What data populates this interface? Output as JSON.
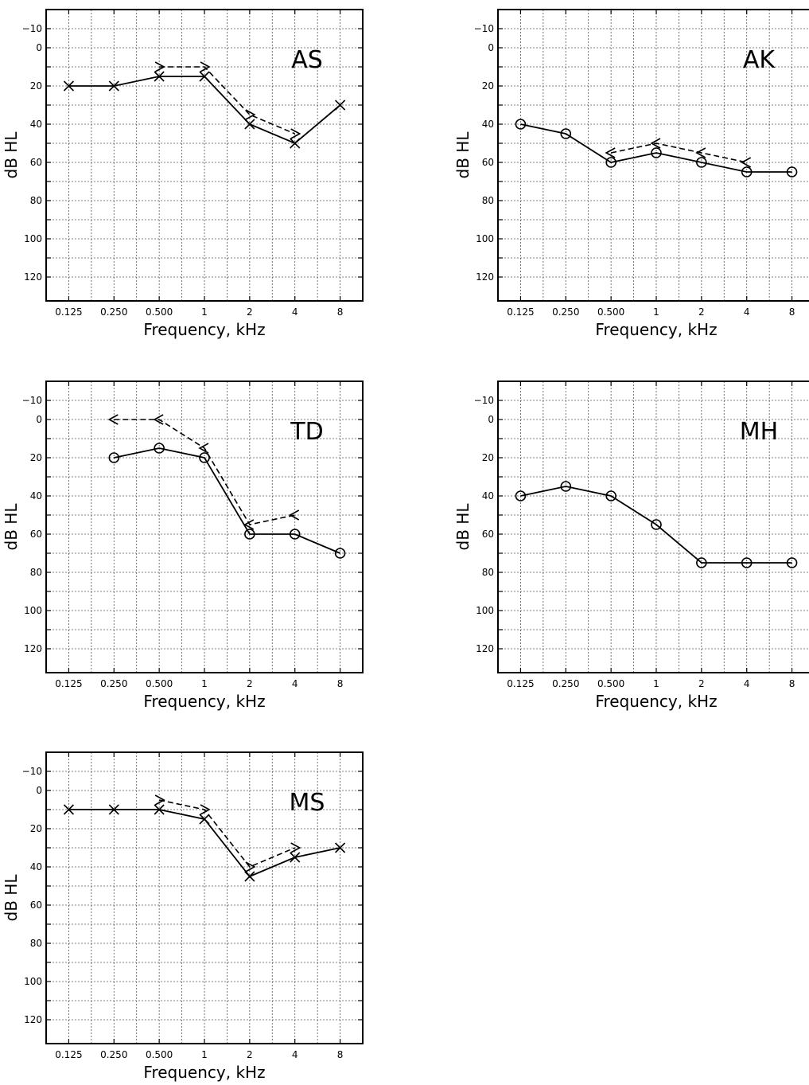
{
  "chart_data": [
    {
      "type": "line",
      "title": "AS",
      "xlabel": "Frequency, kHz",
      "ylabel": "dB HL",
      "x": [
        "0.125",
        "0.250",
        "0.500",
        "1",
        "2",
        "4",
        "8"
      ],
      "yticks": [
        "-10",
        "0",
        "20",
        "40",
        "60",
        "80",
        "100",
        "120"
      ],
      "ylim": [
        -20,
        130
      ],
      "y_inverted": true,
      "grid": true,
      "series": [
        {
          "marker": "x",
          "style": "solid",
          "x": [
            "0.125",
            "0.250",
            "0.500",
            "1",
            "2",
            "4",
            "8"
          ],
          "values": [
            20,
            20,
            15,
            15,
            40,
            50,
            30
          ]
        },
        {
          "marker": ">",
          "style": "dashed",
          "x": [
            "0.500",
            "1",
            "2",
            "4"
          ],
          "values": [
            10,
            10,
            35,
            45
          ]
        }
      ]
    },
    {
      "type": "line",
      "title": "AK",
      "xlabel": "Frequency, kHz",
      "ylabel": "dB HL",
      "x": [
        "0.125",
        "0.250",
        "0.500",
        "1",
        "2",
        "4",
        "8"
      ],
      "yticks": [
        "-10",
        "0",
        "20",
        "40",
        "60",
        "80",
        "100",
        "120"
      ],
      "ylim": [
        -20,
        130
      ],
      "y_inverted": true,
      "grid": true,
      "series": [
        {
          "marker": "o",
          "style": "solid",
          "x": [
            "0.125",
            "0.250",
            "0.500",
            "1",
            "2",
            "4",
            "8"
          ],
          "values": [
            40,
            45,
            60,
            55,
            60,
            65,
            65
          ]
        },
        {
          "marker": "<",
          "style": "dashed",
          "x": [
            "0.500",
            "1",
            "2",
            "4"
          ],
          "values": [
            55,
            50,
            55,
            60
          ]
        }
      ]
    },
    {
      "type": "line",
      "title": "TD",
      "xlabel": "Frequency, kHz",
      "ylabel": "dB HL",
      "x": [
        "0.125",
        "0.250",
        "0.500",
        "1",
        "2",
        "4",
        "8"
      ],
      "yticks": [
        "-10",
        "0",
        "20",
        "40",
        "60",
        "80",
        "100",
        "120"
      ],
      "ylim": [
        -20,
        130
      ],
      "y_inverted": true,
      "grid": true,
      "series": [
        {
          "marker": "o",
          "style": "solid",
          "x": [
            "0.250",
            "0.500",
            "1",
            "2",
            "4",
            "8"
          ],
          "values": [
            20,
            15,
            20,
            60,
            60,
            70
          ]
        },
        {
          "marker": "<",
          "style": "dashed",
          "x": [
            "0.250",
            "0.500",
            "1",
            "2",
            "4"
          ],
          "values": [
            0,
            0,
            15,
            55,
            50
          ]
        }
      ]
    },
    {
      "type": "line",
      "title": "MH",
      "xlabel": "Frequency, kHz",
      "ylabel": "dB HL",
      "x": [
        "0.125",
        "0.250",
        "0.500",
        "1",
        "2",
        "4",
        "8"
      ],
      "yticks": [
        "-10",
        "0",
        "20",
        "40",
        "60",
        "80",
        "100",
        "120"
      ],
      "ylim": [
        -20,
        130
      ],
      "y_inverted": true,
      "grid": true,
      "series": [
        {
          "marker": "o",
          "style": "solid",
          "x": [
            "0.125",
            "0.250",
            "0.500",
            "1",
            "2",
            "4",
            "8"
          ],
          "values": [
            40,
            35,
            40,
            55,
            75,
            75,
            75
          ]
        }
      ]
    },
    {
      "type": "line",
      "title": "MS",
      "xlabel": "Frequency, kHz",
      "ylabel": "dB HL",
      "x": [
        "0.125",
        "0.250",
        "0.500",
        "1",
        "2",
        "4",
        "8"
      ],
      "yticks": [
        "-10",
        "0",
        "20",
        "40",
        "60",
        "80",
        "100",
        "120"
      ],
      "ylim": [
        -20,
        130
      ],
      "y_inverted": true,
      "grid": true,
      "series": [
        {
          "marker": "x",
          "style": "solid",
          "x": [
            "0.125",
            "0.250",
            "0.500",
            "1",
            "2",
            "4",
            "8"
          ],
          "values": [
            10,
            10,
            10,
            15,
            45,
            35,
            30
          ]
        },
        {
          "marker": ">",
          "style": "dashed",
          "x": [
            "0.500",
            "1",
            "2",
            "4"
          ],
          "values": [
            5,
            10,
            40,
            30
          ]
        }
      ]
    }
  ]
}
